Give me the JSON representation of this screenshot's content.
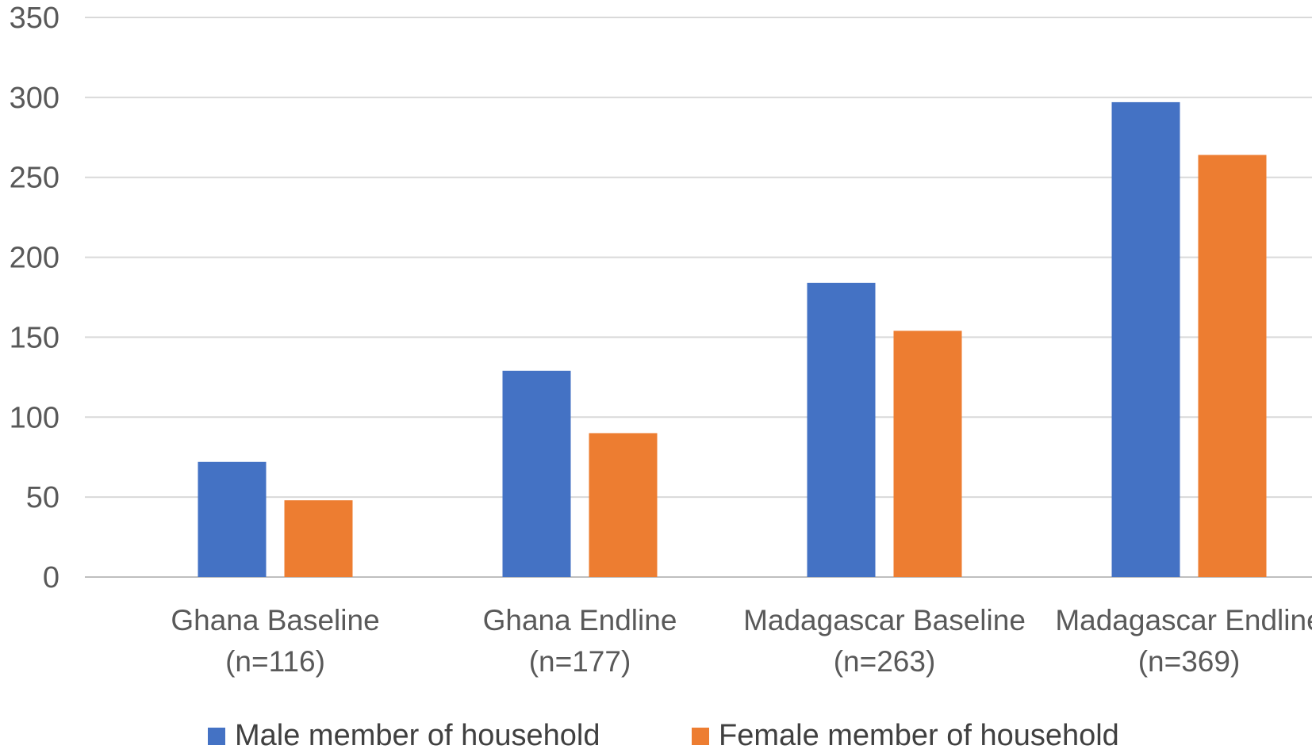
{
  "chart_data": {
    "type": "bar",
    "title": "",
    "xlabel": "",
    "ylabel": "",
    "ylim": [
      0,
      350
    ],
    "yticks": [
      0,
      50,
      100,
      150,
      200,
      250,
      300,
      350
    ],
    "grid": true,
    "legend_position": "bottom",
    "categories": [
      {
        "line1": "Ghana Baseline",
        "line2": "(n=116)"
      },
      {
        "line1": "Ghana Endline",
        "line2": "(n=177)"
      },
      {
        "line1": "Madagascar Baseline",
        "line2": "(n=263)"
      },
      {
        "line1": "Madagascar Endline",
        "line2": "(n=369)"
      }
    ],
    "series": [
      {
        "name": "Male member of household",
        "color": "#4472c4",
        "values": [
          72,
          129,
          184,
          297
        ]
      },
      {
        "name": "Female member of household",
        "color": "#ed7d31",
        "values": [
          48,
          90,
          154,
          264
        ]
      }
    ]
  }
}
